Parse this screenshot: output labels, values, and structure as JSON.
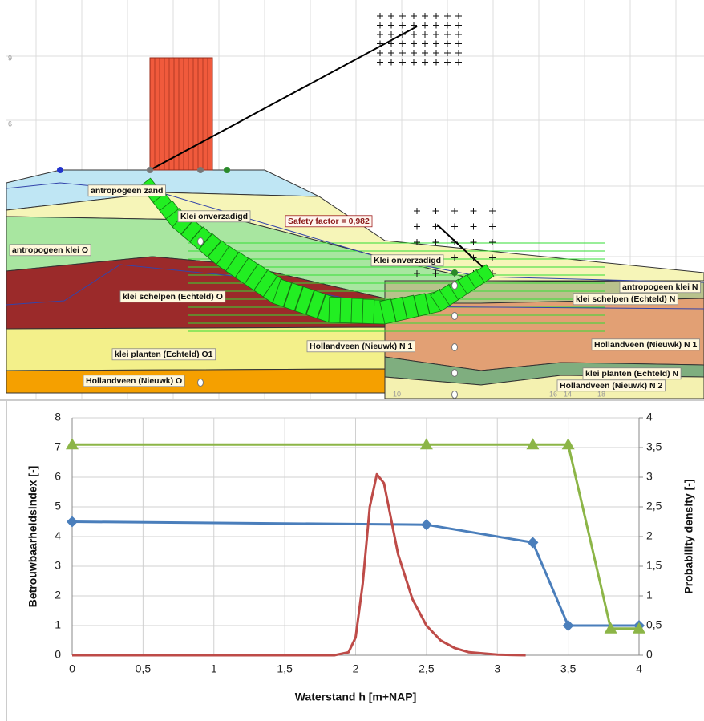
{
  "diagram": {
    "labels": [
      "antropogeen zand",
      "Klei onverzadigd",
      "Safety factor = 0,982",
      "antropogeen klei O",
      "Klei onverzadigd",
      "klei schelpen (Echteld) O",
      "antropogeen klei N",
      "klei schelpen (Echteld) N",
      "klei planten (Echteld) O1",
      "Hollandveen (Nieuwk) N 1",
      "Hollandveen (Nieuwk) N 1",
      "Hollandveen (Nieuwk) O",
      "klei planten (Echteld) N",
      "Hollandveen (Nieuwk) N 2"
    ],
    "axis_labels": [
      "9",
      "6",
      "10",
      "14",
      "16",
      "18"
    ]
  },
  "chart_data": {
    "type": "line",
    "xlabel": "Waterstand h [m+NAP]",
    "ylabel": "Betrouwbaarheidsindex [-]",
    "y2label": "Probability density [-]",
    "xlim": [
      0,
      4
    ],
    "xticks": [
      0,
      {
        "value": 0.5,
        "label": "0,5"
      },
      1,
      {
        "value": 1.5,
        "label": "1,5"
      },
      2,
      {
        "value": 2.5,
        "label": "2,5"
      },
      3,
      {
        "value": 3.5,
        "label": "3,5"
      },
      4
    ],
    "ylim": [
      0,
      8
    ],
    "yticks": [
      0,
      1,
      2,
      3,
      4,
      5,
      6,
      7,
      8
    ],
    "y2lim": [
      0,
      4
    ],
    "y2ticks": [
      0,
      {
        "value": 0.5,
        "label": "0,5"
      },
      1,
      {
        "value": 1.5,
        "label": "1,5"
      },
      2,
      {
        "value": 2.5,
        "label": "2,5"
      },
      3,
      {
        "value": 3.5,
        "label": "3,5"
      },
      4
    ],
    "grid": true,
    "series": [
      {
        "color": "#4a7ebb",
        "marker": "diamond",
        "x": [
          0,
          2.5,
          3.25,
          3.5,
          4
        ],
        "values": [
          4.5,
          4.4,
          3.8,
          1.0,
          1.0
        ]
      },
      {
        "color": "#8cb547",
        "marker": "triangle",
        "x": [
          0,
          2.5,
          3.25,
          3.5,
          3.8,
          4
        ],
        "values": [
          7.1,
          7.1,
          7.1,
          7.1,
          0.9,
          0.9
        ]
      },
      {
        "color": "#be4b48",
        "axis": "y2",
        "x": [
          0,
          1.85,
          1.95,
          2.0,
          2.05,
          2.1,
          2.15,
          2.2,
          2.25,
          2.3,
          2.4,
          2.5,
          2.6,
          2.7,
          2.8,
          3.0,
          3.2
        ],
        "values": [
          0,
          0,
          0.05,
          0.3,
          1.2,
          2.5,
          3.05,
          2.9,
          2.3,
          1.7,
          0.95,
          0.5,
          0.25,
          0.12,
          0.05,
          0.01,
          0
        ]
      }
    ]
  }
}
